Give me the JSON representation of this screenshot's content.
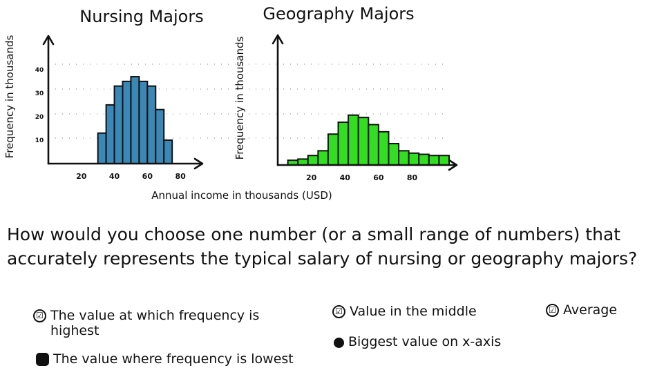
{
  "question": "How would you choose one number (or a small range of numbers) that accurately represents the typical salary of nursing or geography majors?",
  "options": [
    {
      "label": "The value at which frequency is highest",
      "check": "☑"
    },
    {
      "label": "The value where frequency is lowest",
      "check": ""
    },
    {
      "label": "Value in the middle",
      "check": "☑"
    },
    {
      "label": "Biggest value on x-axis",
      "check": ""
    },
    {
      "label": "Average",
      "check": "☑"
    }
  ],
  "shared_xlabel": "Annual income in thousands (USD)",
  "colors": {
    "nursing": "#3b87b5",
    "geography": "#33dd22",
    "ink": "#111111"
  },
  "chart_data": [
    {
      "type": "bar",
      "title": "Nursing Majors",
      "ylabel": "Frequency in thousands",
      "xlabel": "",
      "x_ticks": [
        20,
        40,
        60,
        80
      ],
      "y_ticks": [
        10,
        20,
        30,
        40
      ],
      "xlim": [
        0,
        90
      ],
      "ylim": [
        0,
        52
      ],
      "bin_width": 5,
      "grid": "dotted horizontal",
      "bins_start": [
        30,
        35,
        40,
        45,
        50,
        55,
        60,
        65,
        70
      ],
      "values": [
        13,
        25,
        33,
        35,
        37,
        35,
        33,
        23,
        10
      ]
    },
    {
      "type": "bar",
      "title": "Geography Majors",
      "ylabel": "Frequency in thousands",
      "xlabel": "",
      "x_ticks": [
        20,
        40,
        60,
        80
      ],
      "y_ticks": [],
      "xlim": [
        0,
        102
      ],
      "ylim": [
        0,
        52
      ],
      "bin_width": 6,
      "grid": "dotted horizontal",
      "bins_start": [
        6,
        12,
        18,
        24,
        30,
        36,
        42,
        48,
        54,
        60,
        66,
        72,
        78,
        84,
        90,
        96
      ],
      "values": [
        2,
        2.5,
        4,
        6,
        13,
        18,
        21,
        20,
        17,
        14,
        9,
        6,
        5,
        4.5,
        4,
        4
      ]
    }
  ]
}
